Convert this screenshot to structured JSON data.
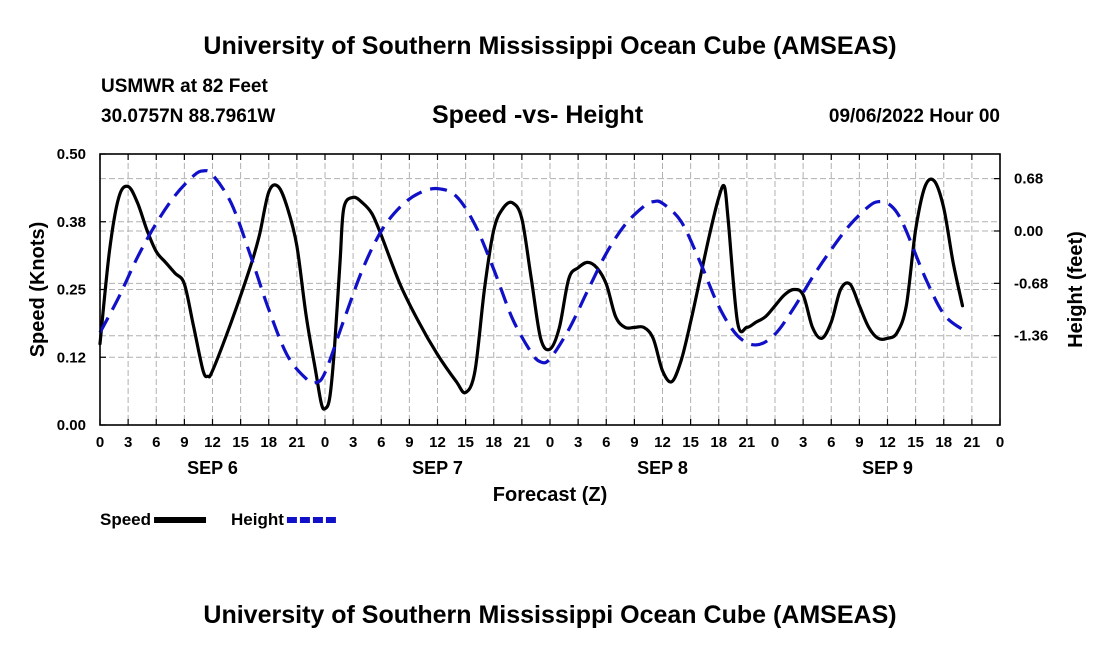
{
  "header": {
    "title": "University of Southern Mississippi Ocean Cube (AMSEAS)",
    "station": "USMWR at 82 Feet",
    "coords": "30.0757N  88.7961W",
    "datetime": "09/06/2022 Hour 00"
  },
  "footer": {
    "title": "University of Southern Mississippi Ocean Cube (AMSEAS)"
  },
  "chart_data": {
    "type": "line",
    "title": "Speed -vs- Height",
    "xlabel": "Forecast (Z)",
    "ylabel": "Speed (Knots)",
    "y2label": "Height (feet)",
    "x_ticks": [
      "0",
      "3",
      "6",
      "9",
      "12",
      "15",
      "18",
      "21",
      "0",
      "3",
      "6",
      "9",
      "12",
      "15",
      "18",
      "21",
      "0",
      "3",
      "6",
      "9",
      "12",
      "15",
      "18",
      "21",
      "0",
      "3",
      "6",
      "9",
      "12",
      "15",
      "18",
      "21",
      "0"
    ],
    "day_labels": [
      {
        "label": "SEP 6",
        "hour": 12
      },
      {
        "label": "SEP 7",
        "hour": 36
      },
      {
        "label": "SEP 8",
        "hour": 60
      },
      {
        "label": "SEP 9",
        "hour": 84
      }
    ],
    "xlim": [
      0,
      96
    ],
    "ylim": [
      0,
      0.5
    ],
    "y_ticks": [
      "0.00",
      "0.12",
      "0.25",
      "0.38",
      "0.50"
    ],
    "y2lim": [
      -2.52,
      1.0
    ],
    "y2_ticks": [
      "0.68",
      "0.00",
      "-0.68",
      "-1.36"
    ],
    "grid": true,
    "legend": [
      {
        "name": "Speed",
        "color": "#000000",
        "style": "solid"
      },
      {
        "name": "Height",
        "color": "#1010c8",
        "style": "dashed"
      }
    ],
    "series": [
      {
        "name": "Speed",
        "axis": "left",
        "color": "#000000",
        "points": [
          [
            0,
            0.15
          ],
          [
            1,
            0.32
          ],
          [
            2,
            0.42
          ],
          [
            3,
            0.44
          ],
          [
            4,
            0.41
          ],
          [
            5,
            0.36
          ],
          [
            6,
            0.32
          ],
          [
            7,
            0.3
          ],
          [
            8,
            0.28
          ],
          [
            9,
            0.26
          ],
          [
            10,
            0.18
          ],
          [
            11,
            0.1
          ],
          [
            11.5,
            0.09
          ],
          [
            12,
            0.1
          ],
          [
            14,
            0.19
          ],
          [
            16,
            0.29
          ],
          [
            17,
            0.35
          ],
          [
            18,
            0.43
          ],
          [
            19,
            0.44
          ],
          [
            20,
            0.4
          ],
          [
            21,
            0.33
          ],
          [
            22,
            0.2
          ],
          [
            23,
            0.1
          ],
          [
            23.6,
            0.04
          ],
          [
            24,
            0.03
          ],
          [
            24.5,
            0.05
          ],
          [
            25,
            0.14
          ],
          [
            25.6,
            0.3
          ],
          [
            26,
            0.4
          ],
          [
            27,
            0.42
          ],
          [
            28,
            0.41
          ],
          [
            29,
            0.39
          ],
          [
            30,
            0.35
          ],
          [
            32,
            0.26
          ],
          [
            34,
            0.19
          ],
          [
            36,
            0.13
          ],
          [
            38,
            0.08
          ],
          [
            39,
            0.06
          ],
          [
            40,
            0.1
          ],
          [
            41,
            0.25
          ],
          [
            42,
            0.36
          ],
          [
            43,
            0.4
          ],
          [
            44,
            0.41
          ],
          [
            45,
            0.38
          ],
          [
            46,
            0.27
          ],
          [
            47,
            0.16
          ],
          [
            48,
            0.14
          ],
          [
            49,
            0.18
          ],
          [
            50,
            0.27
          ],
          [
            51,
            0.29
          ],
          [
            52,
            0.3
          ],
          [
            53,
            0.29
          ],
          [
            54,
            0.26
          ],
          [
            55,
            0.2
          ],
          [
            56,
            0.18
          ],
          [
            57,
            0.18
          ],
          [
            58,
            0.18
          ],
          [
            59,
            0.16
          ],
          [
            60,
            0.1
          ],
          [
            61,
            0.08
          ],
          [
            62,
            0.12
          ],
          [
            63,
            0.19
          ],
          [
            64,
            0.27
          ],
          [
            65,
            0.35
          ],
          [
            66,
            0.42
          ],
          [
            66.6,
            0.44
          ],
          [
            67,
            0.38
          ],
          [
            68,
            0.19
          ],
          [
            69,
            0.18
          ],
          [
            70,
            0.19
          ],
          [
            71,
            0.2
          ],
          [
            72,
            0.22
          ],
          [
            73,
            0.24
          ],
          [
            74,
            0.25
          ],
          [
            75,
            0.24
          ],
          [
            76,
            0.18
          ],
          [
            77,
            0.16
          ],
          [
            78,
            0.19
          ],
          [
            79,
            0.25
          ],
          [
            80,
            0.26
          ],
          [
            81,
            0.22
          ],
          [
            82,
            0.18
          ],
          [
            83,
            0.16
          ],
          [
            84,
            0.16
          ],
          [
            85,
            0.17
          ],
          [
            86,
            0.22
          ],
          [
            87,
            0.36
          ],
          [
            88,
            0.44
          ],
          [
            89,
            0.45
          ],
          [
            90,
            0.4
          ],
          [
            91,
            0.3
          ],
          [
            92,
            0.22
          ]
        ]
      },
      {
        "name": "Height",
        "axis": "right",
        "color": "#1010c8",
        "points": [
          [
            0,
            -1.32
          ],
          [
            2,
            -0.86
          ],
          [
            4,
            -0.34
          ],
          [
            6,
            0.1
          ],
          [
            8,
            0.46
          ],
          [
            10,
            0.72
          ],
          [
            11,
            0.78
          ],
          [
            12,
            0.73
          ],
          [
            14,
            0.36
          ],
          [
            16,
            -0.3
          ],
          [
            18,
            -1.02
          ],
          [
            20,
            -1.62
          ],
          [
            22,
            -1.92
          ],
          [
            23,
            -1.97
          ],
          [
            24,
            -1.84
          ],
          [
            26,
            -1.16
          ],
          [
            28,
            -0.5
          ],
          [
            30,
            0.0
          ],
          [
            32,
            0.31
          ],
          [
            34,
            0.49
          ],
          [
            36,
            0.55
          ],
          [
            38,
            0.45
          ],
          [
            40,
            0.08
          ],
          [
            42,
            -0.5
          ],
          [
            44,
            -1.14
          ],
          [
            46,
            -1.58
          ],
          [
            47,
            -1.7
          ],
          [
            48,
            -1.66
          ],
          [
            50,
            -1.28
          ],
          [
            52,
            -0.78
          ],
          [
            54,
            -0.29
          ],
          [
            56,
            0.08
          ],
          [
            58,
            0.32
          ],
          [
            59,
            0.38
          ],
          [
            60,
            0.36
          ],
          [
            62,
            0.12
          ],
          [
            64,
            -0.4
          ],
          [
            66,
            -0.98
          ],
          [
            68,
            -1.36
          ],
          [
            70,
            -1.48
          ],
          [
            72,
            -1.34
          ],
          [
            74,
            -1.0
          ],
          [
            76,
            -0.6
          ],
          [
            78,
            -0.24
          ],
          [
            80,
            0.08
          ],
          [
            82,
            0.32
          ],
          [
            83,
            0.38
          ],
          [
            84,
            0.36
          ],
          [
            85,
            0.24
          ],
          [
            86,
            0.0
          ],
          [
            88,
            -0.6
          ],
          [
            90,
            -1.08
          ],
          [
            92,
            -1.28
          ]
        ]
      }
    ]
  }
}
